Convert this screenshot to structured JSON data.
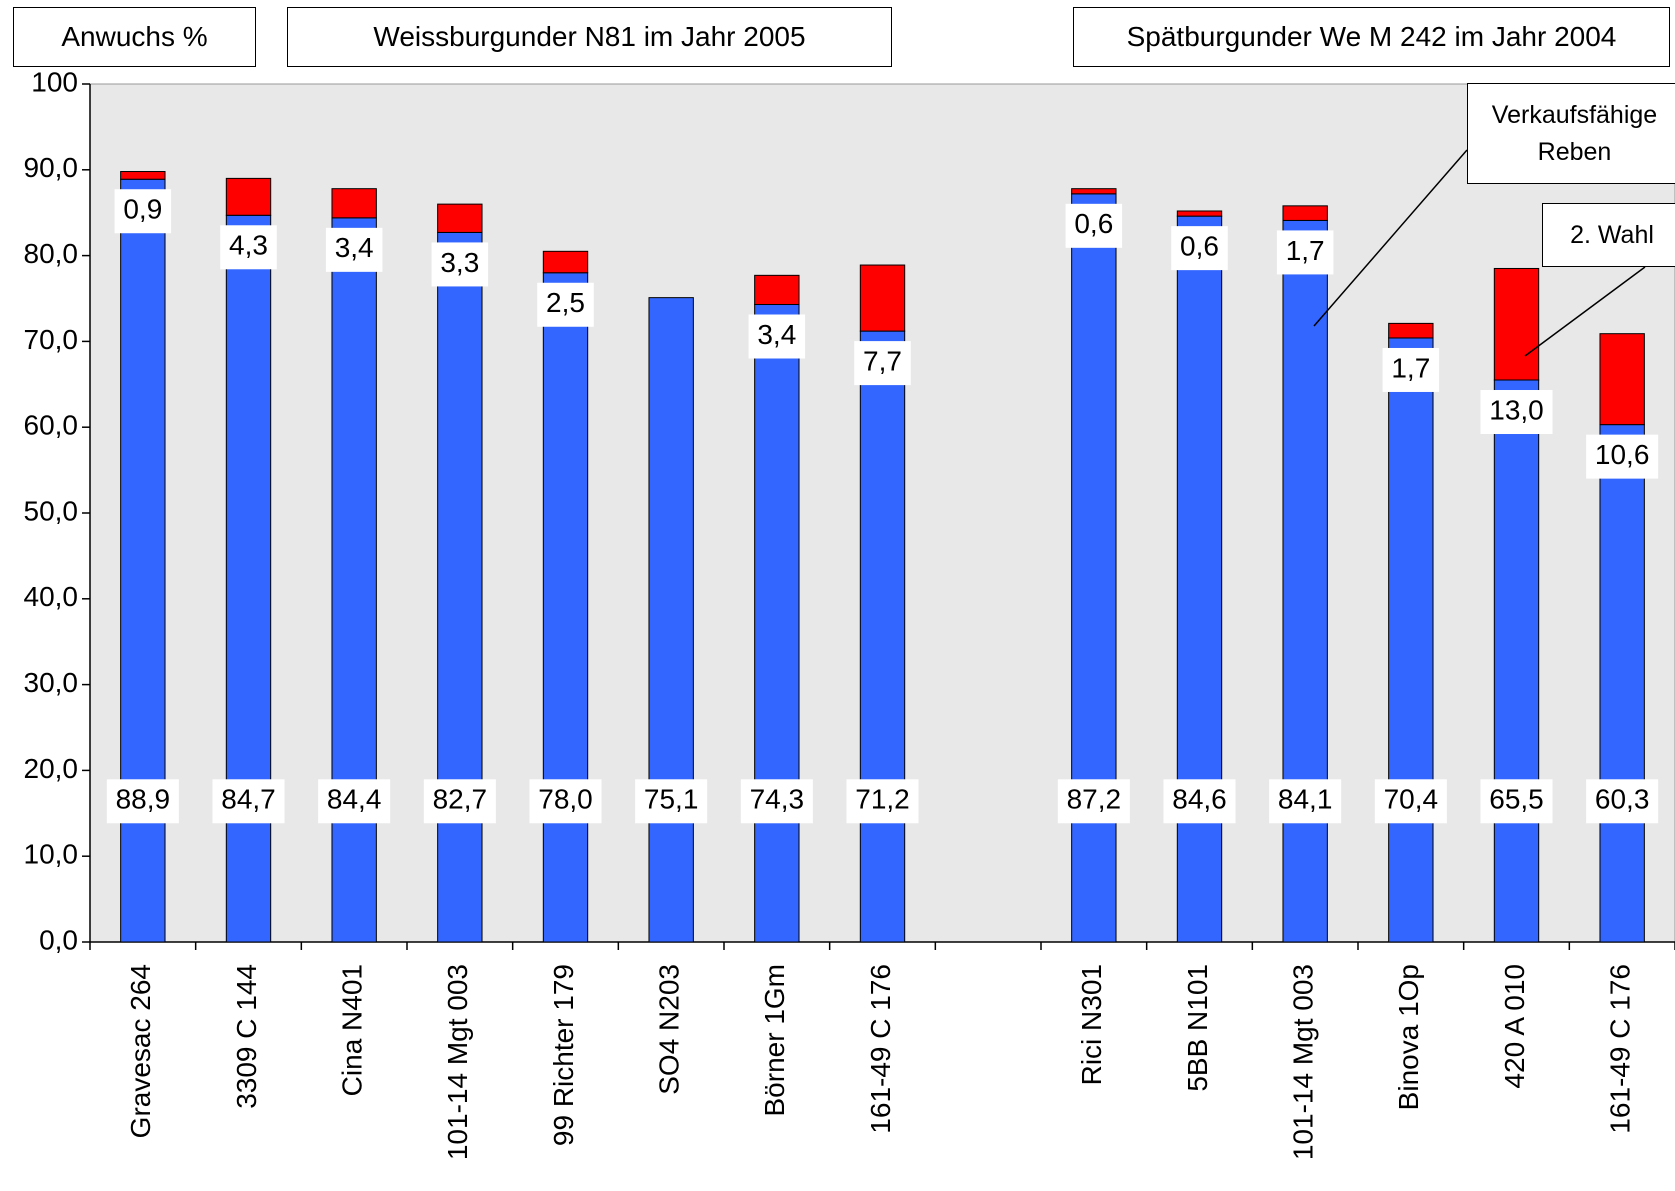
{
  "chart_data": {
    "type": "stacked_bar",
    "ylabel": "Anwuchs %",
    "annotations": [
      "Weissburgunder N81 im Jahr 2005",
      "Spätburgunder We M 242 im Jahr 2004"
    ],
    "categories": [
      "Gravesac 264",
      "3309 C 144",
      "Cina N401",
      "101-14 Mgt 003",
      "99 Richter  179",
      "SO4 N203",
      "Börner 1Gm",
      "161-49 C 176",
      null,
      "Rici N301",
      "5BB N101",
      "101-14 Mgt 003",
      "Binova 1Op",
      "420 A  010",
      "161-49 C 176"
    ],
    "series": [
      {
        "name": "Verkaufsfähige Reben",
        "color": "#3366ff",
        "values": [
          88.9,
          84.7,
          84.4,
          82.7,
          78.0,
          75.1,
          74.3,
          71.2,
          null,
          87.2,
          84.6,
          84.1,
          70.4,
          65.5,
          60.3
        ],
        "value_labels": [
          "88,9",
          "84,7",
          "84,4",
          "82,7",
          "78,0",
          "75,1",
          "74,3",
          "71,2",
          null,
          "87,2",
          "84,6",
          "84,1",
          "70,4",
          "65,5",
          "60,3"
        ]
      },
      {
        "name": "2. Wahl",
        "color": "#ff0000",
        "values": [
          0.9,
          4.3,
          3.4,
          3.3,
          2.5,
          null,
          3.4,
          7.7,
          null,
          0.6,
          0.6,
          1.7,
          1.7,
          13.0,
          10.6
        ],
        "value_labels": [
          "0,9",
          "4,3",
          "3,4",
          "3,3",
          "2,5",
          null,
          "3,4",
          "7,7",
          null,
          "0,6",
          "0,6",
          "1,7",
          "1,7",
          "13,0",
          "10,6"
        ]
      }
    ],
    "ylim": [
      0,
      100
    ],
    "yticks": [
      {
        "value": 0,
        "label": "0,0"
      },
      {
        "value": 10,
        "label": "10,0"
      },
      {
        "value": 20,
        "label": "20,0"
      },
      {
        "value": 30,
        "label": "30,0"
      },
      {
        "value": 40,
        "label": "40,0"
      },
      {
        "value": 50,
        "label": "50,0"
      },
      {
        "value": 60,
        "label": "60,0"
      },
      {
        "value": 70,
        "label": "70,0"
      },
      {
        "value": 80,
        "label": "80,0"
      },
      {
        "value": 90,
        "label": "90,0"
      },
      100
    ]
  }
}
